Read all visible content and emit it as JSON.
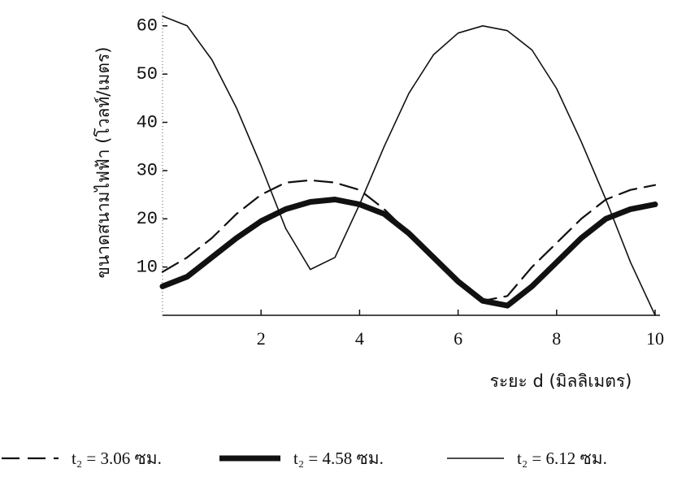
{
  "chart_data": {
    "type": "line",
    "xlabel": "ระยะ d (มิลลิเมตร)",
    "ylabel": "ขนาดสนามไฟฟ้า (โวลท์/เมตร)",
    "x": [
      0,
      0.5,
      1,
      1.5,
      2,
      2.5,
      3,
      3.5,
      4,
      4.5,
      5,
      5.5,
      6,
      6.5,
      7,
      7.5,
      8,
      8.5,
      9,
      9.5,
      10
    ],
    "series": [
      {
        "name": "t₂ = 3.06 ซม.",
        "color": "#111111",
        "line_style": "dashed",
        "values": [
          9,
          12,
          16,
          21,
          25,
          27.5,
          28,
          27.5,
          26,
          22,
          17,
          12,
          7,
          3,
          4,
          10,
          15,
          20,
          24,
          26,
          27
        ]
      },
      {
        "name": "t₂ = 4.58 ซม.",
        "color": "#111111",
        "line_style": "thick",
        "values": [
          6,
          8,
          12,
          16,
          19.5,
          22,
          23.5,
          24,
          23,
          21,
          17,
          12,
          7,
          3,
          2,
          6,
          11,
          16,
          20,
          22,
          23
        ]
      },
      {
        "name": "t₂ = 6.12 ซม.",
        "color": "#111111",
        "line_style": "thin",
        "values": [
          62,
          60,
          53,
          43,
          31,
          18,
          9.5,
          12,
          23,
          35,
          46,
          54,
          58.5,
          60,
          59,
          55,
          47,
          36,
          24,
          11,
          0
        ]
      }
    ],
    "xlim": [
      0,
      10
    ],
    "xticks": [
      2,
      4,
      6,
      8,
      10
    ],
    "ylim": [
      0,
      63
    ],
    "yticks": [
      10,
      20,
      30,
      40,
      50,
      60
    ]
  }
}
